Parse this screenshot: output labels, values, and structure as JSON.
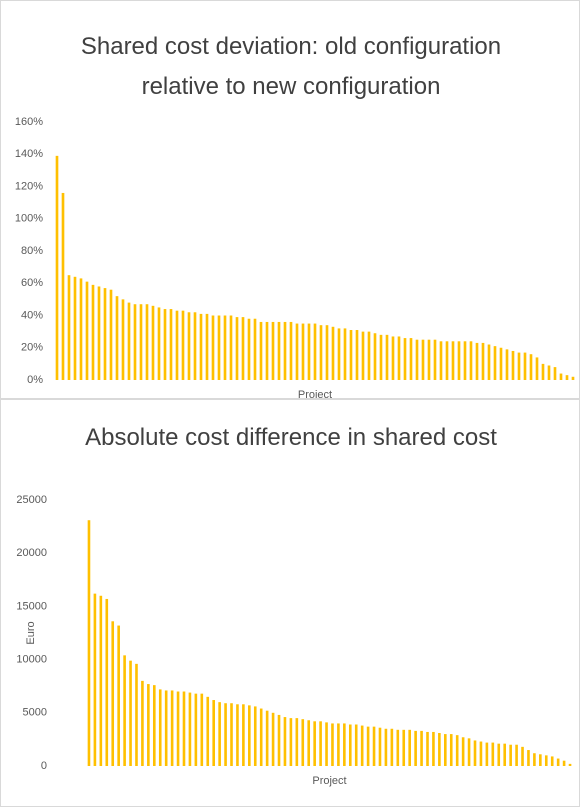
{
  "chart_data": [
    {
      "type": "bar",
      "title": "Shared cost deviation: old configuration relative to new configuration",
      "x_label": "Project",
      "color": "#ffc000",
      "values": [
        139,
        116,
        65,
        64,
        63,
        61,
        59,
        58,
        57,
        56,
        52,
        50,
        48,
        47,
        47,
        47,
        46,
        45,
        44,
        44,
        43,
        43,
        42,
        42,
        41,
        41,
        40,
        40,
        40,
        40,
        39,
        39,
        38,
        38,
        36,
        36,
        36,
        36,
        36,
        36,
        35,
        35,
        35,
        35,
        34,
        34,
        33,
        32,
        32,
        31,
        31,
        30,
        30,
        29,
        28,
        28,
        27,
        27,
        26,
        26,
        25,
        25,
        25,
        25,
        24,
        24,
        24,
        24,
        24,
        24,
        23,
        23,
        22,
        21,
        20,
        19,
        18,
        17,
        17,
        16,
        14,
        10,
        9,
        8,
        4,
        3,
        2
      ],
      "ylim": [
        0,
        160
      ],
      "yticks": [
        {
          "value": 0,
          "label": "0%"
        },
        {
          "value": 20,
          "label": "20%"
        },
        {
          "value": 40,
          "label": "40%"
        },
        {
          "value": 60,
          "label": "60%"
        },
        {
          "value": 80,
          "label": "80%"
        },
        {
          "value": 100,
          "label": "100%"
        },
        {
          "value": 120,
          "label": "120%"
        },
        {
          "value": 140,
          "label": "140%"
        },
        {
          "value": 160,
          "label": "160%"
        }
      ]
    },
    {
      "type": "bar",
      "title": "Absolute cost difference in shared cost",
      "x_label": "Project",
      "y_label": "Euro",
      "color": "#ffc000",
      "values": [
        23100,
        16200,
        16000,
        15700,
        13600,
        13200,
        10400,
        9900,
        9600,
        8000,
        7700,
        7600,
        7200,
        7100,
        7100,
        7000,
        7000,
        6900,
        6800,
        6800,
        6500,
        6200,
        6000,
        5900,
        5900,
        5800,
        5800,
        5700,
        5600,
        5400,
        5200,
        5000,
        4800,
        4600,
        4500,
        4500,
        4400,
        4300,
        4200,
        4200,
        4100,
        4000,
        4000,
        4000,
        3900,
        3900,
        3800,
        3700,
        3700,
        3600,
        3500,
        3500,
        3400,
        3400,
        3400,
        3300,
        3300,
        3200,
        3200,
        3100,
        3000,
        3000,
        2900,
        2700,
        2600,
        2400,
        2300,
        2200,
        2200,
        2100,
        2100,
        2000,
        2000,
        1800,
        1500,
        1200,
        1100,
        1000,
        900,
        700,
        500,
        200
      ],
      "ylim": [
        0,
        25000
      ],
      "yticks": [
        0,
        5000,
        10000,
        15000,
        20000,
        25000
      ]
    }
  ]
}
